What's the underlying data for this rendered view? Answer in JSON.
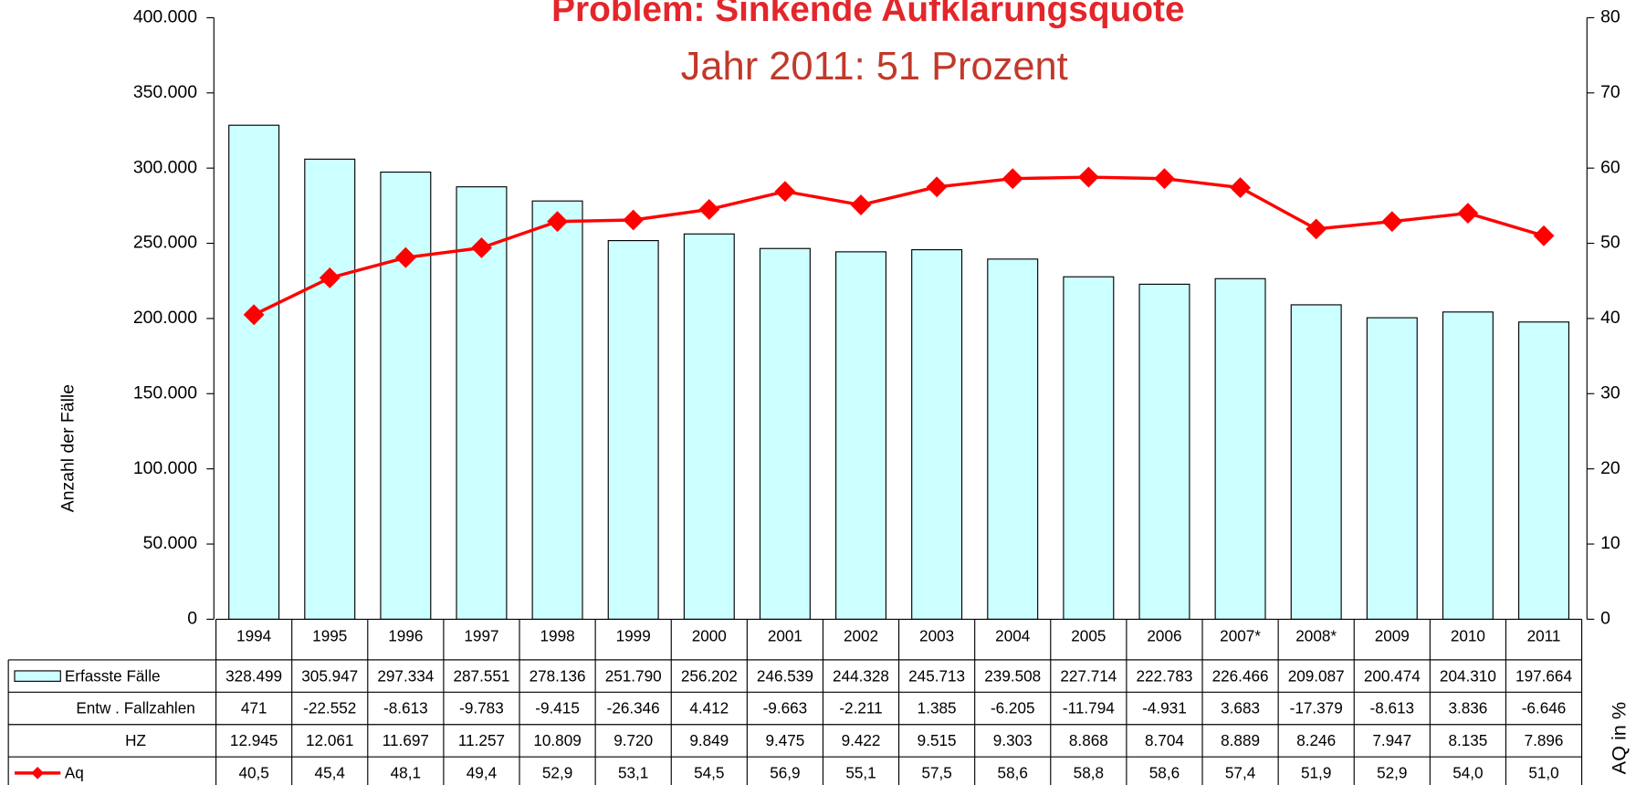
{
  "chart_data": {
    "type": "bar",
    "title": "Problem: Sinkende Aufklärungsquote",
    "subtitle": "Jahr 2011: 51 Prozent",
    "ylabel": "Anzahl der Fälle",
    "y2label": "AQ in %",
    "categories": [
      "1994",
      "1995",
      "1996",
      "1997",
      "1998",
      "1999",
      "2000",
      "2001",
      "2002",
      "2003",
      "2004",
      "2005",
      "2006",
      "2007*",
      "2008*",
      "2009",
      "2010",
      "2011"
    ],
    "series": [
      {
        "name": "Erfasste Fälle",
        "type": "bar",
        "color": "#ccffff",
        "values": [
          328499,
          305947,
          297334,
          287551,
          278136,
          251790,
          256202,
          246539,
          244328,
          245713,
          239508,
          227714,
          222783,
          226466,
          209087,
          200474,
          204310,
          197664
        ],
        "value_labels": [
          "328.499",
          "305.947",
          "297.334",
          "287.551",
          "278.136",
          "251.790",
          "256.202",
          "246.539",
          "244.328",
          "245.713",
          "239.508",
          "227.714",
          "222.783",
          "226.466",
          "209.087",
          "200.474",
          "204.310",
          "197.664"
        ]
      },
      {
        "name": "Aq",
        "type": "line",
        "axis": "y2",
        "color": "#ff0000",
        "values": [
          40.5,
          45.4,
          48.1,
          49.4,
          52.9,
          53.1,
          54.5,
          56.9,
          55.1,
          57.5,
          58.6,
          58.8,
          58.6,
          57.4,
          51.9,
          52.9,
          54.0,
          51.0
        ],
        "value_labels": [
          "40,5",
          "45,4",
          "48,1",
          "49,4",
          "52,9",
          "53,1",
          "54,5",
          "56,9",
          "55,1",
          "57,5",
          "58,6",
          "58,8",
          "58,6",
          "57,4",
          "51,9",
          "52,9",
          "54,0",
          "51,0"
        ]
      }
    ],
    "table": [
      {
        "name": "Entw . Fallzahlen",
        "values": [
          471,
          -22552,
          -8613,
          -9783,
          -9415,
          -26346,
          4412,
          -9663,
          -2211,
          1385,
          -6205,
          -11794,
          -4931,
          3683,
          -17379,
          -8613,
          3836,
          -6646
        ],
        "value_labels": [
          "471",
          "-22.552",
          "-8.613",
          "-9.783",
          "-9.415",
          "-26.346",
          "4.412",
          "-9.663",
          "-2.211",
          "1.385",
          "-6.205",
          "-11.794",
          "-4.931",
          "3.683",
          "-17.379",
          "-8.613",
          "3.836",
          "-6.646"
        ]
      },
      {
        "name": "HZ",
        "values": [
          12945,
          12061,
          11697,
          11257,
          10809,
          9720,
          9849,
          9475,
          9422,
          9515,
          9303,
          8868,
          8704,
          8889,
          8246,
          7947,
          8135,
          7896
        ],
        "value_labels": [
          "12.945",
          "12.061",
          "11.697",
          "11.257",
          "10.809",
          "9.720",
          "9.849",
          "9.475",
          "9.422",
          "9.515",
          "9.303",
          "8.868",
          "8.704",
          "8.889",
          "8.246",
          "7.947",
          "8.135",
          "7.896"
        ]
      }
    ],
    "ylim": [
      0,
      400000
    ],
    "yticks": [
      0,
      {
        "value": 50000,
        "label": "50.000"
      },
      {
        "value": 100000,
        "label": "100.000"
      },
      {
        "value": 150000,
        "label": "150.000"
      },
      {
        "value": 200000,
        "label": "200.000"
      },
      {
        "value": 250000,
        "label": "250.000"
      },
      {
        "value": 300000,
        "label": "300.000"
      },
      {
        "value": 350000,
        "label": "350.000"
      },
      {
        "value": 400000,
        "label": "400.000"
      }
    ],
    "y2lim": [
      0,
      80
    ],
    "y2ticks": [
      0,
      10,
      20,
      30,
      40,
      50,
      60,
      70,
      80
    ]
  }
}
